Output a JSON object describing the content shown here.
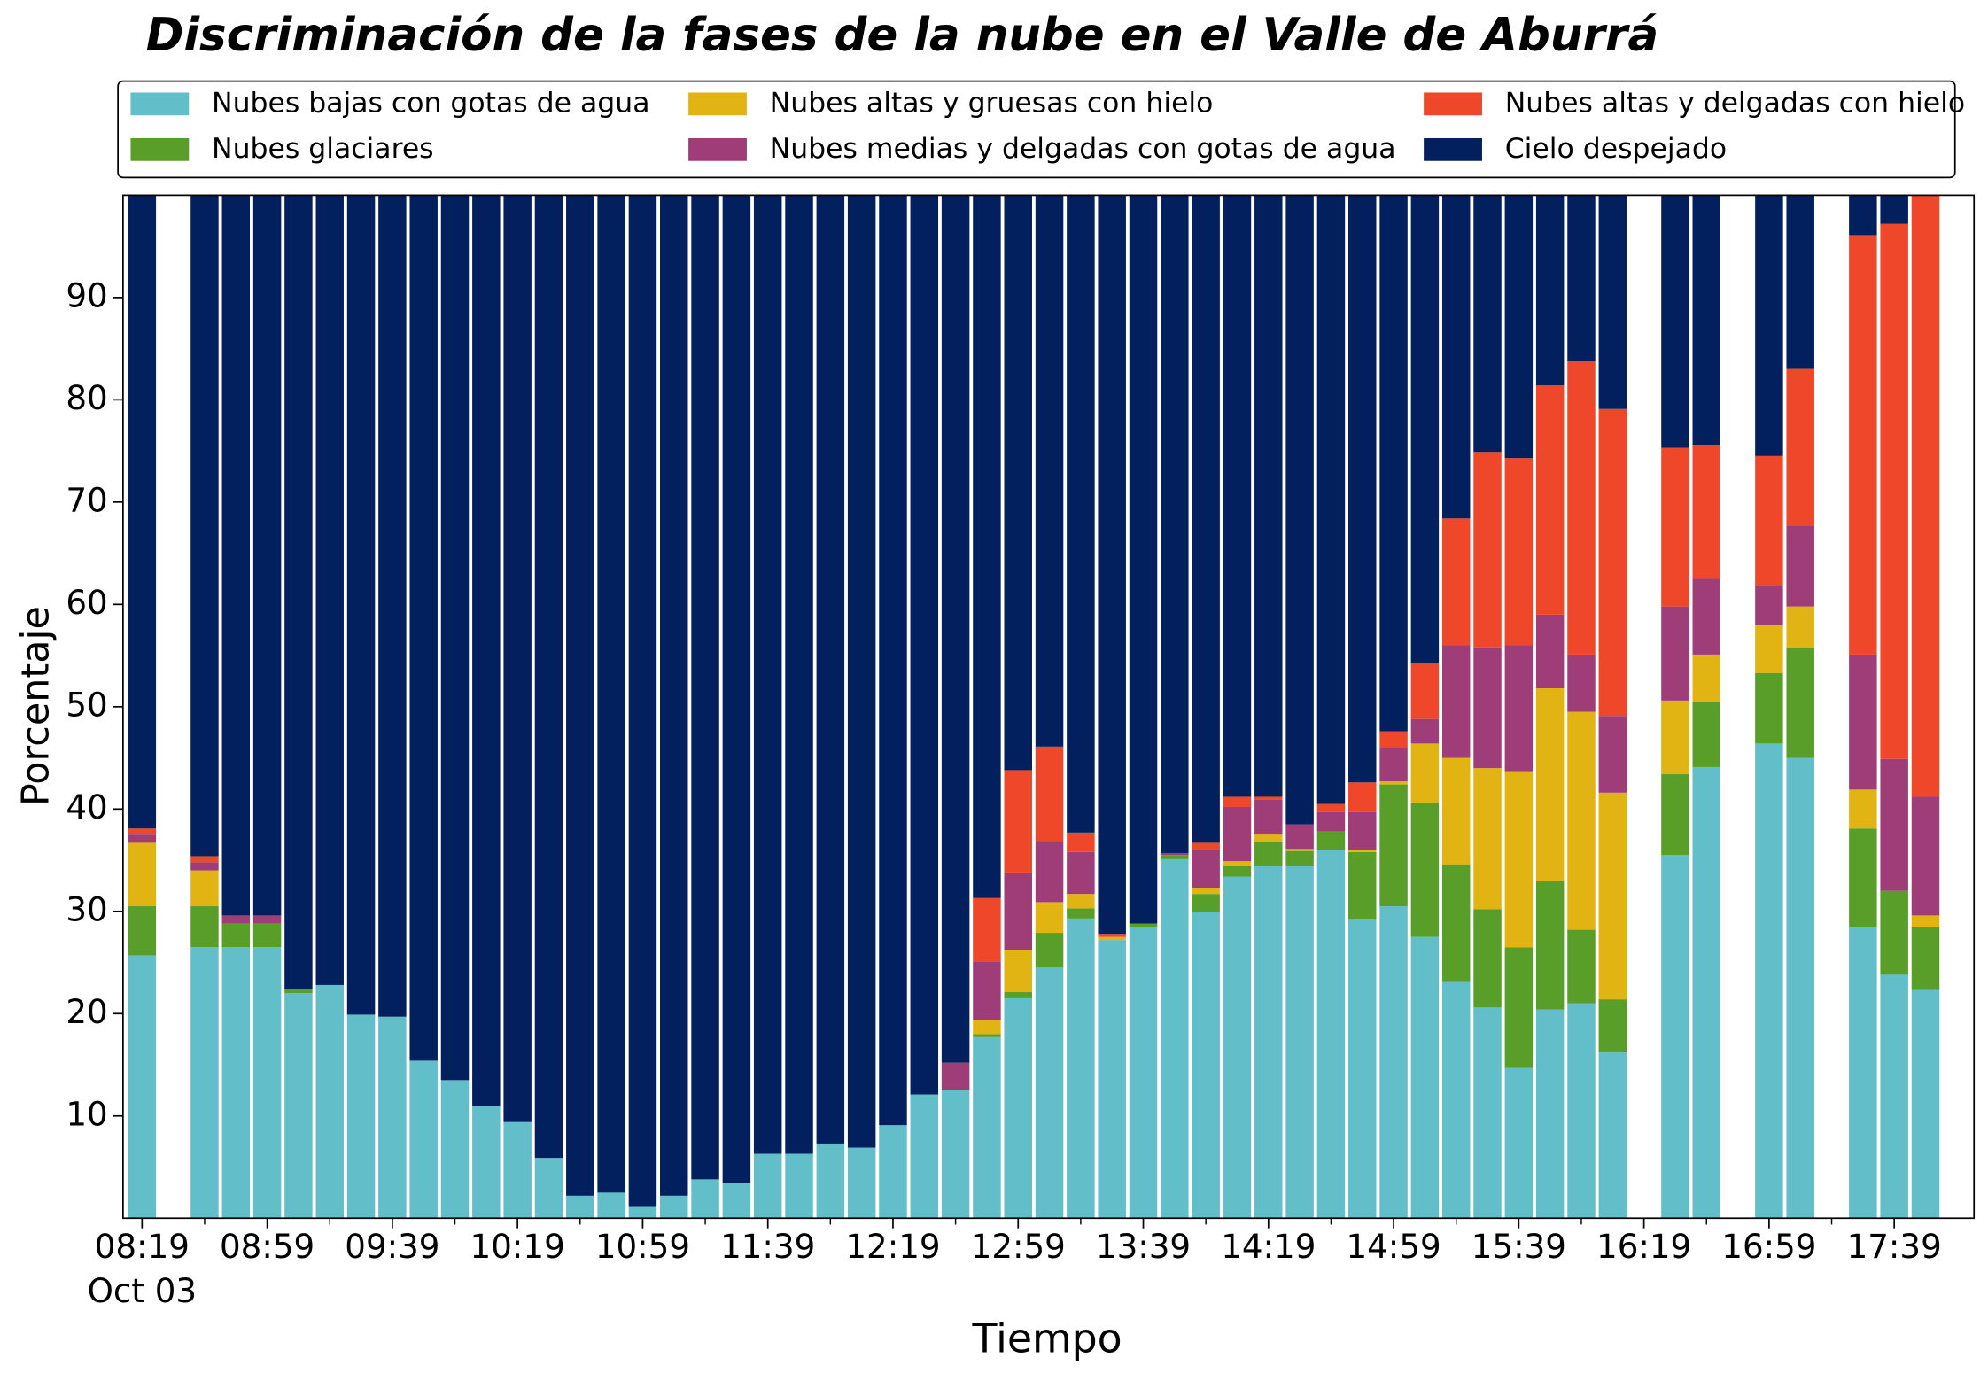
{
  "chart_data": {
    "type": "stacked_bar",
    "title": "Discriminación de la fases de la nube en el Valle de Aburrá",
    "xlabel": "Tiempo",
    "ylabel": "Porcentaje",
    "x_date_label": "Oct 03",
    "categories": [
      "08:19",
      null,
      null,
      null,
      "08:59",
      null,
      null,
      null,
      "09:39",
      null,
      null,
      null,
      "10:19",
      null,
      null,
      null,
      "10:59",
      null,
      null,
      null,
      "11:39",
      null,
      null,
      null,
      "12:19",
      null,
      null,
      null,
      "12:59",
      null,
      null,
      null,
      "13:39",
      null,
      null,
      null,
      "14:19",
      null,
      null,
      null,
      "14:59",
      null,
      null,
      null,
      "15:39",
      null,
      null,
      null,
      "16:19",
      null,
      null,
      null,
      "16:59",
      null,
      null,
      null,
      "17:39",
      null
    ],
    "ylim": [
      0,
      100
    ],
    "yticks": [
      10,
      20,
      30,
      40,
      50,
      60,
      70,
      80,
      90
    ],
    "series": [
      {
        "name": "Nubes bajas con gotas de agua",
        "color": "#62bec9",
        "values": [
          25.7,
          null,
          26.5,
          26.5,
          26.5,
          22.0,
          22.8,
          19.9,
          19.7,
          15.4,
          13.5,
          11.0,
          9.4,
          5.9,
          2.2,
          2.5,
          1.1,
          2.2,
          3.8,
          3.4,
          6.3,
          6.3,
          7.3,
          6.9,
          9.1,
          12.1,
          12.5,
          17.7,
          21.5,
          24.5,
          29.3,
          27.2,
          28.5,
          35.1,
          29.9,
          33.4,
          34.4,
          34.4,
          36.0,
          29.2,
          30.5,
          27.5,
          23.1,
          20.6,
          14.7,
          20.4,
          21.0,
          16.2,
          null,
          35.5,
          44.1,
          null,
          46.4,
          45.0,
          null,
          28.5,
          23.8,
          22.3
        ]
      },
      {
        "name": "Nubes glaciares",
        "color": "#5a9e2a",
        "values": [
          4.8,
          null,
          4.0,
          2.3,
          2.3,
          0.4,
          0,
          0,
          0,
          0,
          0,
          0,
          0,
          0,
          0,
          0,
          0,
          0,
          0,
          0,
          0,
          0,
          0,
          0,
          0,
          0,
          0,
          0.3,
          0.6,
          3.4,
          1.0,
          0,
          0.3,
          0.4,
          1.8,
          1.0,
          2.4,
          1.5,
          1.8,
          6.6,
          11.9,
          13.1,
          11.5,
          9.6,
          11.8,
          12.6,
          7.2,
          5.2,
          null,
          7.9,
          6.4,
          null,
          6.9,
          10.7,
          null,
          9.6,
          8.2,
          6.2
        ]
      },
      {
        "name": "Nubes altas y gruesas con hielo",
        "color": "#e2b413",
        "values": [
          6.2,
          null,
          3.5,
          0,
          0,
          0,
          0,
          0,
          0,
          0,
          0,
          0,
          0,
          0,
          0,
          0,
          0,
          0,
          0,
          0,
          0,
          0,
          0,
          0,
          0,
          0,
          0,
          1.4,
          4.1,
          3.0,
          1.4,
          0.3,
          0,
          0,
          0.6,
          0.5,
          0.7,
          0.2,
          0,
          0.2,
          0.3,
          5.8,
          10.4,
          13.8,
          17.2,
          18.8,
          21.3,
          20.2,
          null,
          7.2,
          4.6,
          null,
          4.7,
          4.1,
          null,
          3.8,
          0,
          1.1
        ]
      },
      {
        "name": "Nubes medias y delgadas con gotas de agua",
        "color": "#9e3d77",
        "values": [
          0.8,
          null,
          0.8,
          0.8,
          0.8,
          0,
          0,
          0,
          0,
          0,
          0,
          0,
          0,
          0,
          0,
          0,
          0,
          0,
          0,
          0,
          0,
          0,
          0,
          0,
          0,
          0,
          2.7,
          5.7,
          7.6,
          6.0,
          4.1,
          0,
          0,
          0.2,
          3.8,
          5.3,
          3.4,
          2.4,
          1.9,
          3.7,
          3.3,
          2.4,
          11.0,
          11.8,
          12.3,
          7.2,
          5.6,
          7.5,
          null,
          9.2,
          7.4,
          null,
          3.9,
          7.9,
          null,
          13.2,
          12.9,
          11.6
        ]
      },
      {
        "name": "Nubes altas y delgadas con hielo",
        "color": "#ef472a",
        "values": [
          0.6,
          null,
          0.6,
          0,
          0,
          0,
          0,
          0,
          0,
          0,
          0,
          0,
          0,
          0,
          0,
          0,
          0,
          0,
          0,
          0,
          0,
          0,
          0,
          0,
          0,
          0,
          0,
          6.2,
          10.0,
          9.2,
          1.9,
          0.3,
          0,
          0,
          0.6,
          1.0,
          0.3,
          0,
          0.8,
          2.9,
          1.6,
          5.5,
          12.4,
          19.1,
          18.3,
          22.4,
          28.7,
          30.0,
          null,
          15.5,
          13.1,
          null,
          12.6,
          15.4,
          null,
          41.0,
          52.3,
          58.8
        ]
      },
      {
        "name": "Cielo despejado",
        "color": "#03205e",
        "values": [
          61.9,
          null,
          64.6,
          70.4,
          70.4,
          77.6,
          77.2,
          80.1,
          80.3,
          84.6,
          86.5,
          89.0,
          90.6,
          94.1,
          97.8,
          97.5,
          98.9,
          97.8,
          96.2,
          96.6,
          93.7,
          93.7,
          92.7,
          93.1,
          90.9,
          87.9,
          84.8,
          68.7,
          56.2,
          53.9,
          62.3,
          72.2,
          71.2,
          64.3,
          63.3,
          58.8,
          58.8,
          61.5,
          59.5,
          57.4,
          52.4,
          45.7,
          31.6,
          25.1,
          25.7,
          18.6,
          16.2,
          20.9,
          null,
          24.7,
          24.4,
          null,
          25.5,
          16.9,
          null,
          3.9,
          2.8,
          0
        ]
      }
    ]
  }
}
